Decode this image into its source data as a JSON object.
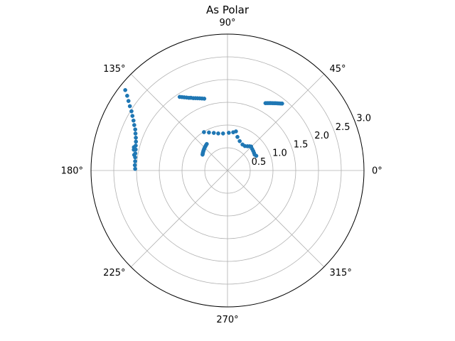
{
  "chart_data": {
    "type": "scatter",
    "projection": "polar",
    "title": "As Polar",
    "angle_unit": "degrees",
    "theta_ticks": [
      0,
      45,
      90,
      135,
      180,
      225,
      270,
      315
    ],
    "theta_tick_labels": [
      "0°",
      "45°",
      "90°",
      "135°",
      "180°",
      "225°",
      "270°",
      "315°"
    ],
    "r_ticks": [
      0.5,
      1.0,
      1.5,
      2.0,
      2.5,
      3.0
    ],
    "r_tick_labels": [
      "0.5",
      "1.0",
      "1.5",
      "2.0",
      "2.5",
      "3.0"
    ],
    "rlim": [
      0,
      3.0
    ],
    "r_label_angle": 22.5,
    "grid": true,
    "series_color": "#1f77b4",
    "series": [
      {
        "points": [
          {
            "theta": 60.6,
            "r": 1.7
          },
          {
            "theta": 59.5,
            "r": 1.72
          },
          {
            "theta": 58.4,
            "r": 1.74
          },
          {
            "theta": 57.4,
            "r": 1.76
          },
          {
            "theta": 56.3,
            "r": 1.78
          },
          {
            "theta": 55.3,
            "r": 1.8
          },
          {
            "theta": 54.4,
            "r": 1.82
          },
          {
            "theta": 53.4,
            "r": 1.84
          },
          {
            "theta": 52.5,
            "r": 1.86
          },
          {
            "theta": 51.6,
            "r": 1.88
          },
          {
            "theta": 50.8,
            "r": 1.9
          },
          {
            "theta": 123.0,
            "r": 1.93
          },
          {
            "theta": 121.8,
            "r": 1.9
          },
          {
            "theta": 120.6,
            "r": 1.87
          },
          {
            "theta": 119.3,
            "r": 1.84
          },
          {
            "theta": 118.0,
            "r": 1.81
          },
          {
            "theta": 116.7,
            "r": 1.79
          },
          {
            "theta": 115.3,
            "r": 1.76
          },
          {
            "theta": 113.9,
            "r": 1.74
          },
          {
            "theta": 112.5,
            "r": 1.72
          },
          {
            "theta": 111.0,
            "r": 1.7
          },
          {
            "theta": 109.5,
            "r": 1.68
          },
          {
            "theta": 107.9,
            "r": 1.66
          },
          {
            "theta": 141.8,
            "r": 2.86
          },
          {
            "theta": 143.3,
            "r": 2.75
          },
          {
            "theta": 144.9,
            "r": 2.66
          },
          {
            "theta": 146.6,
            "r": 2.57
          },
          {
            "theta": 148.3,
            "r": 2.48
          },
          {
            "theta": 150.1,
            "r": 2.41
          },
          {
            "theta": 152.0,
            "r": 2.34
          },
          {
            "theta": 154.0,
            "r": 2.28
          },
          {
            "theta": 156.0,
            "r": 2.22
          },
          {
            "theta": 158.1,
            "r": 2.18
          },
          {
            "theta": 160.3,
            "r": 2.14
          },
          {
            "theta": 162.5,
            "r": 2.11
          },
          {
            "theta": 164.8,
            "r": 2.09
          },
          {
            "theta": 167.1,
            "r": 2.07
          },
          {
            "theta": 169.5,
            "r": 2.06
          },
          {
            "theta": 171.9,
            "r": 2.05
          },
          {
            "theta": 174.3,
            "r": 2.04
          },
          {
            "theta": 176.7,
            "r": 2.04
          },
          {
            "theta": 179.0,
            "r": 2.03
          },
          {
            "theta": 167.5,
            "r": 2.11
          },
          {
            "theta": 166.0,
            "r": 2.12
          },
          {
            "theta": 170.5,
            "r": 2.08
          },
          {
            "theta": 121.5,
            "r": 0.99
          },
          {
            "theta": 116.0,
            "r": 0.93
          },
          {
            "theta": 110.0,
            "r": 0.88
          },
          {
            "theta": 104.0,
            "r": 0.84
          },
          {
            "theta": 96.8,
            "r": 0.82
          },
          {
            "theta": 88.0,
            "r": 0.83
          },
          {
            "theta": 81.5,
            "r": 0.85
          },
          {
            "theta": 77.8,
            "r": 0.88
          },
          {
            "theta": 73.5,
            "r": 0.77
          },
          {
            "theta": 67.5,
            "r": 0.7
          },
          {
            "theta": 60.0,
            "r": 0.66
          },
          {
            "theta": 54.6,
            "r": 0.66
          },
          {
            "theta": 50.6,
            "r": 0.69
          },
          {
            "theta": 47.7,
            "r": 0.72
          },
          {
            "theta": 45.4,
            "r": 0.74
          },
          {
            "theta": 41.2,
            "r": 0.72
          },
          {
            "theta": 37.3,
            "r": 0.71
          },
          {
            "theta": 33.6,
            "r": 0.7
          },
          {
            "theta": 30.3,
            "r": 0.69
          },
          {
            "theta": 27.0,
            "r": 0.71
          },
          {
            "theta": 147.5,
            "r": 0.65
          },
          {
            "theta": 145.5,
            "r": 0.66
          },
          {
            "theta": 143.5,
            "r": 0.67
          },
          {
            "theta": 141.4,
            "r": 0.68
          },
          {
            "theta": 139.2,
            "r": 0.69
          },
          {
            "theta": 137.0,
            "r": 0.7
          },
          {
            "theta": 134.8,
            "r": 0.71
          },
          {
            "theta": 132.5,
            "r": 0.72
          },
          {
            "theta": 130.3,
            "r": 0.73
          },
          {
            "theta": 128.0,
            "r": 0.74
          }
        ]
      }
    ]
  }
}
